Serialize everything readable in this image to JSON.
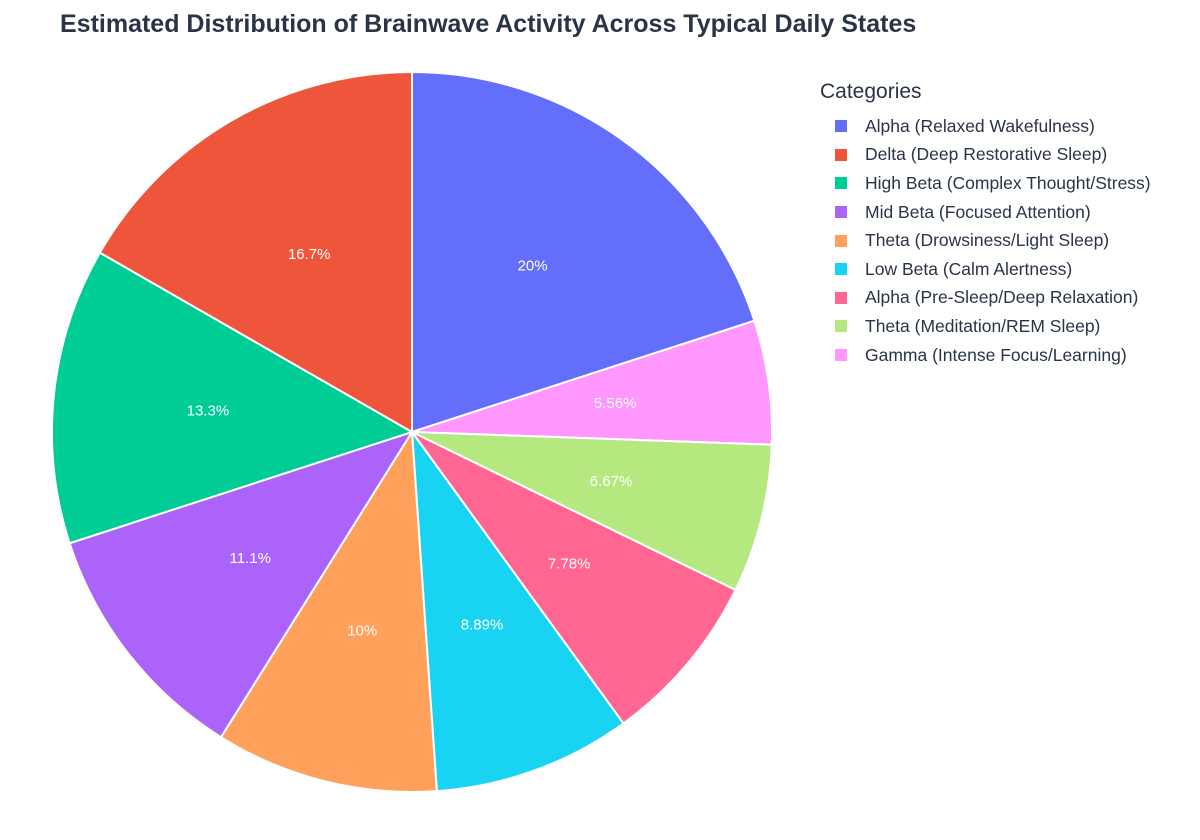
{
  "chart_data": {
    "type": "pie",
    "title": "Estimated Distribution of Brainwave Activity Across Typical Daily States",
    "legend_title": "Categories",
    "legend_position": "right",
    "direction": "clockwise",
    "start": "top",
    "slices": [
      {
        "label": "Alpha (Relaxed Wakefulness)",
        "value": 20,
        "text": "20%",
        "color": "#636efa"
      },
      {
        "label": "Gamma (Intense Focus/Learning)",
        "value": 5.56,
        "text": "5.56%",
        "color": "#ff97ff"
      },
      {
        "label": "Theta (Meditation/REM Sleep)",
        "value": 6.67,
        "text": "6.67%",
        "color": "#b6e880"
      },
      {
        "label": "Alpha (Pre-Sleep/Deep Relaxation)",
        "value": 7.78,
        "text": "7.78%",
        "color": "#ff6692"
      },
      {
        "label": "Low Beta (Calm Alertness)",
        "value": 8.89,
        "text": "8.89%",
        "color": "#19d3f3"
      },
      {
        "label": "Theta (Drowsiness/Light Sleep)",
        "value": 10,
        "text": "10%",
        "color": "#ffa15a"
      },
      {
        "label": "Mid Beta (Focused Attention)",
        "value": 11.1,
        "text": "11.1%",
        "color": "#ab63fa"
      },
      {
        "label": "High Beta (Complex Thought/Stress)",
        "value": 13.3,
        "text": "13.3%",
        "color": "#00cc96"
      },
      {
        "label": "Delta (Deep Restorative Sleep)",
        "value": 16.7,
        "text": "16.7%",
        "color": "#ef553b"
      }
    ],
    "legend_order": [
      "Alpha (Relaxed Wakefulness)",
      "Delta (Deep Restorative Sleep)",
      "High Beta (Complex Thought/Stress)",
      "Mid Beta (Focused Attention)",
      "Theta (Drowsiness/Light Sleep)",
      "Low Beta (Calm Alertness)",
      "Alpha (Pre-Sleep/Deep Relaxation)",
      "Theta (Meditation/REM Sleep)",
      "Gamma (Intense Focus/Learning)"
    ]
  }
}
